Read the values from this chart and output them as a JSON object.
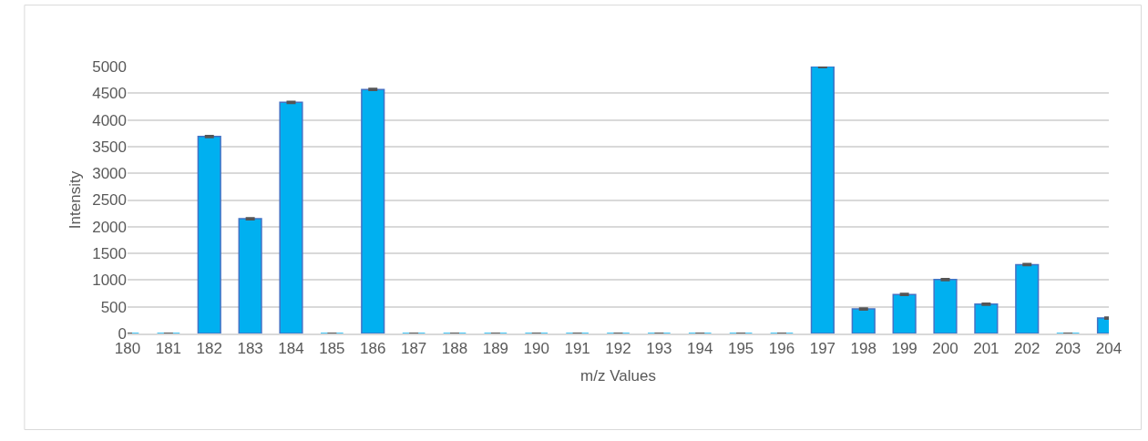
{
  "chart_data": {
    "type": "bar",
    "xlabel": "m/z Values",
    "ylabel": "Intensity",
    "x": [
      180,
      181,
      182,
      183,
      184,
      185,
      186,
      187,
      188,
      189,
      190,
      191,
      192,
      193,
      194,
      195,
      196,
      197,
      198,
      199,
      200,
      201,
      202,
      203,
      204
    ],
    "values": [
      0,
      0,
      3690,
      2150,
      4330,
      0,
      4570,
      0,
      0,
      0,
      0,
      0,
      0,
      0,
      0,
      0,
      0,
      5000,
      460,
      730,
      1010,
      550,
      1290,
      0,
      290
    ],
    "errors": [
      null,
      null,
      15,
      15,
      15,
      null,
      15,
      null,
      null,
      null,
      null,
      null,
      null,
      null,
      null,
      null,
      null,
      15,
      15,
      15,
      15,
      15,
      15,
      null,
      15
    ],
    "color": "#00b0f0",
    "xlim": [
      180,
      204
    ],
    "xticks": [
      180,
      181,
      182,
      183,
      184,
      185,
      186,
      187,
      188,
      189,
      190,
      191,
      192,
      193,
      194,
      195,
      196,
      197,
      198,
      199,
      200,
      201,
      202,
      203,
      204
    ],
    "ylim": [
      0,
      5000
    ],
    "yticks": [
      0,
      500,
      1000,
      1500,
      2000,
      2500,
      3000,
      3500,
      4000,
      4500,
      5000
    ],
    "grid": "y"
  }
}
